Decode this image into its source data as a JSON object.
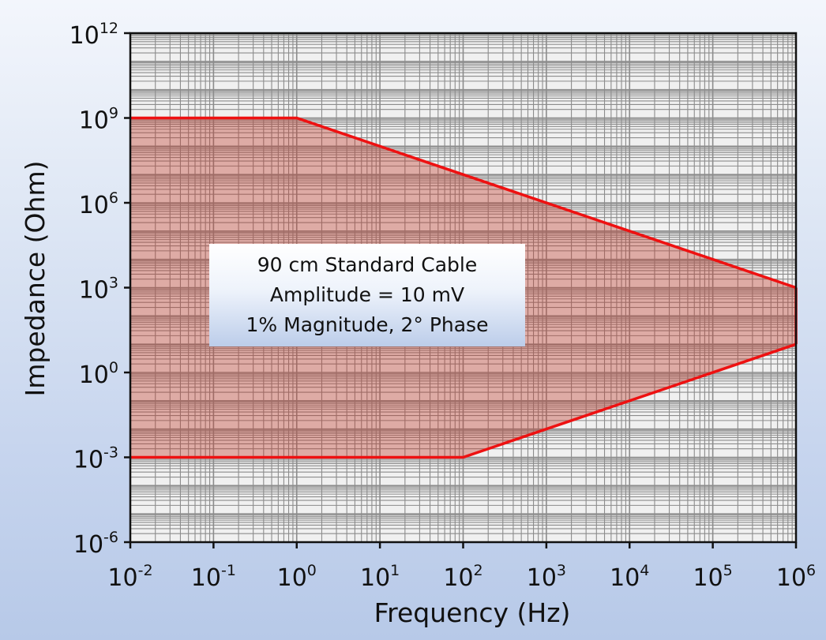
{
  "chart_data": {
    "type": "area",
    "title": "",
    "xlabel": "Frequency (Hz)",
    "ylabel": "Impedance (Ohm)",
    "x_scale": "log",
    "y_scale": "log",
    "xlim": [
      0.01,
      1000000
    ],
    "ylim": [
      1e-06,
      1000000000000
    ],
    "grid": true,
    "x_ticks": [
      {
        "base": "10",
        "exp": "-2"
      },
      {
        "base": "10",
        "exp": "-1"
      },
      {
        "base": "10",
        "exp": "0"
      },
      {
        "base": "10",
        "exp": "1"
      },
      {
        "base": "10",
        "exp": "2"
      },
      {
        "base": "10",
        "exp": "3"
      },
      {
        "base": "10",
        "exp": "4"
      },
      {
        "base": "10",
        "exp": "5"
      },
      {
        "base": "10",
        "exp": "6"
      }
    ],
    "y_ticks": [
      {
        "base": "10",
        "exp": "12"
      },
      {
        "base": "10",
        "exp": "9"
      },
      {
        "base": "10",
        "exp": "6"
      },
      {
        "base": "10",
        "exp": "3"
      },
      {
        "base": "10",
        "exp": "0"
      },
      {
        "base": "10",
        "exp": "-3"
      },
      {
        "base": "10",
        "exp": "-6"
      }
    ],
    "series": [
      {
        "upper": [
          [
            0.01,
            1000000000
          ],
          [
            1,
            1000000000
          ],
          [
            1000000,
            1000
          ]
        ],
        "lower": [
          [
            0.01,
            0.001
          ],
          [
            100,
            0.001
          ],
          [
            1000000,
            10
          ]
        ]
      }
    ],
    "annotation": {
      "lines": [
        "90 cm Standard Cable",
        "Amplitude = 10 mV",
        "1% Magnitude, 2° Phase"
      ]
    },
    "colors": {
      "boundary": "#ee1111",
      "fill": "#c0392b",
      "plot_background": "#f0f0f0",
      "grid": "#8c8c8c"
    }
  }
}
